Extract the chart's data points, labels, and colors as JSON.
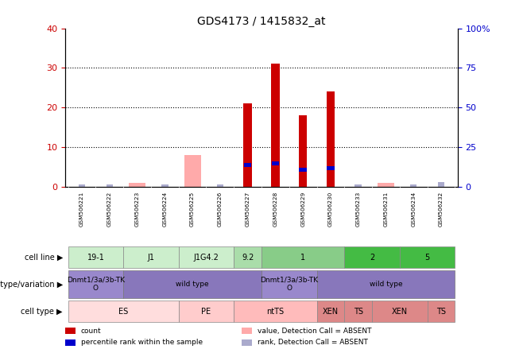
{
  "title": "GDS4173 / 1415832_at",
  "samples": [
    "GSM506221",
    "GSM506222",
    "GSM506223",
    "GSM506224",
    "GSM506225",
    "GSM506226",
    "GSM506227",
    "GSM506228",
    "GSM506229",
    "GSM506230",
    "GSM506233",
    "GSM506231",
    "GSM506234",
    "GSM506232"
  ],
  "count_values": [
    0,
    0,
    0,
    0,
    0,
    0,
    21,
    31,
    18,
    24,
    0,
    0,
    0,
    0
  ],
  "percentile_values": [
    0,
    0,
    0,
    0,
    0,
    0,
    14,
    15,
    11,
    12,
    0,
    0,
    0,
    0
  ],
  "absent_count": [
    0,
    0,
    1,
    0,
    8,
    0,
    0,
    0,
    0,
    0,
    0,
    1,
    0,
    0
  ],
  "absent_rank": [
    1,
    1,
    0,
    1,
    0,
    1,
    0,
    0,
    0,
    0,
    1,
    0,
    1,
    2
  ],
  "ylim_left": [
    0,
    40
  ],
  "ylim_right": [
    0,
    100
  ],
  "yticks_left": [
    0,
    10,
    20,
    30,
    40
  ],
  "yticks_right": [
    0,
    25,
    50,
    75,
    100
  ],
  "bar_color_red": "#cc0000",
  "bar_color_blue": "#0000cc",
  "bar_color_pink": "#ffaaaa",
  "bar_color_lightblue": "#aaaacc",
  "axis_label_color_left": "#cc0000",
  "axis_label_color_right": "#0000cc",
  "background_color": "#ffffff",
  "sample_label_bg": "#cccccc",
  "cell_line_groups": [
    {
      "label": "19-1",
      "samples": [
        0,
        1
      ],
      "color": "#cceecc"
    },
    {
      "label": "J1",
      "samples": [
        2,
        3
      ],
      "color": "#cceecc"
    },
    {
      "label": "J1G4.2",
      "samples": [
        4,
        5
      ],
      "color": "#cceecc"
    },
    {
      "label": "9.2",
      "samples": [
        6
      ],
      "color": "#aaddaa"
    },
    {
      "label": "1",
      "samples": [
        7,
        8,
        9
      ],
      "color": "#88cc88"
    },
    {
      "label": "2",
      "samples": [
        10,
        11
      ],
      "color": "#44bb44"
    },
    {
      "label": "5",
      "samples": [
        12,
        13
      ],
      "color": "#44bb44"
    }
  ],
  "geno_groups": [
    {
      "label": "Dnmt1/3a/3b-TK\nO",
      "samples": [
        0,
        1
      ],
      "color": "#9988cc"
    },
    {
      "label": "wild type",
      "samples": [
        2,
        3,
        4,
        5,
        6
      ],
      "color": "#8877bb"
    },
    {
      "label": "Dnmt1/3a/3b-TK\nO",
      "samples": [
        7,
        8
      ],
      "color": "#9988cc"
    },
    {
      "label": "wild type",
      "samples": [
        9,
        10,
        11,
        12,
        13
      ],
      "color": "#8877bb"
    }
  ],
  "celltype_groups": [
    {
      "label": "ES",
      "samples": [
        0,
        1,
        2,
        3
      ],
      "color": "#ffdddd"
    },
    {
      "label": "PE",
      "samples": [
        4,
        5
      ],
      "color": "#ffcccc"
    },
    {
      "label": "ntTS",
      "samples": [
        6,
        7,
        8
      ],
      "color": "#ffbbbb"
    },
    {
      "label": "XEN",
      "samples": [
        9
      ],
      "color": "#dd8888"
    },
    {
      "label": "TS",
      "samples": [
        10
      ],
      "color": "#dd8888"
    },
    {
      "label": "XEN",
      "samples": [
        11,
        12
      ],
      "color": "#dd8888"
    },
    {
      "label": "TS",
      "samples": [
        13
      ],
      "color": "#dd8888"
    }
  ],
  "legend_colors": [
    "#cc0000",
    "#0000cc",
    "#ffaaaa",
    "#aaaacc"
  ],
  "legend_labels": [
    "count",
    "percentile rank within the sample",
    "value, Detection Call = ABSENT",
    "rank, Detection Call = ABSENT"
  ]
}
